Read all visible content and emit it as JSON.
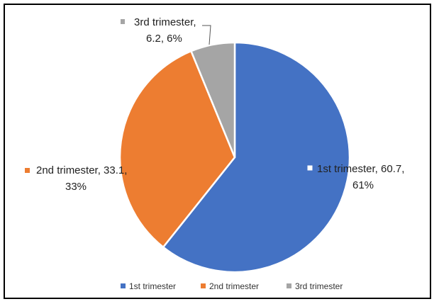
{
  "chart_data": {
    "type": "pie",
    "categories": [
      "1st trimester",
      "2nd trimester",
      "3rd trimester"
    ],
    "values": [
      60.7,
      33.1,
      6.2
    ],
    "percent_labels": [
      "61%",
      "33%",
      "6%"
    ],
    "colors": [
      "#4472C4",
      "#ED7D31",
      "#A5A5A5"
    ],
    "data_labels": [
      {
        "line1": "1st trimester, 60.7,",
        "line2": "61%"
      },
      {
        "line1": "2nd trimester, 33.1,",
        "line2": "33%"
      },
      {
        "line1": "3rd trimester,",
        "line2": "6.2, 6%"
      }
    ],
    "legend": [
      "1st trimester",
      "2nd trimester",
      "3rd trimester"
    ],
    "legend_position": "bottom",
    "title": ""
  }
}
